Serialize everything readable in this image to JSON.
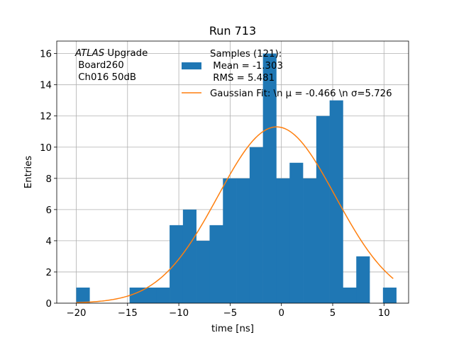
{
  "chart_data": {
    "type": "bar",
    "title": "Run 713",
    "xlabel": "time [ns]",
    "ylabel": "Entries",
    "xlim": [
      -21.9,
      12.4
    ],
    "ylim": [
      0,
      16.8
    ],
    "grid": true,
    "x_ticks": [
      -20,
      -15,
      -10,
      -5,
      0,
      5,
      10
    ],
    "y_ticks": [
      0,
      2,
      4,
      6,
      8,
      10,
      12,
      14,
      16
    ],
    "bin_edges": [
      -20.0,
      -18.7,
      -17.4,
      -16.1,
      -14.8,
      -13.5,
      -12.2,
      -10.9,
      -9.6,
      -8.3,
      -7.0,
      -5.7,
      -4.4,
      -3.1,
      -1.8,
      -0.5,
      0.8,
      2.1,
      3.4,
      4.7,
      6.0,
      7.3,
      8.6,
      9.9,
      11.2
    ],
    "series": [
      {
        "name": "Samples (121):\n Mean = -1.303\n RMS = 5.481",
        "kind": "histogram",
        "color": "#1f77b4",
        "counts": [
          1,
          0,
          0,
          0,
          1,
          1,
          1,
          5,
          6,
          4,
          5,
          8,
          8,
          10,
          16,
          8,
          9,
          8,
          12,
          13,
          1,
          3,
          0,
          1
        ]
      },
      {
        "name": "Gaussian Fit: \\n $\\mu$ = -0.466 \\n $\\sigma$=5.726",
        "kind": "line",
        "color": "#ff7f0e",
        "mu": -0.466,
        "sigma": 5.726,
        "amplitude": 11.3,
        "x_range": [
          -20.0,
          10.9
        ]
      }
    ],
    "legend": {
      "placement": "top-center",
      "entries": [
        {
          "lines": [
            "Samples (121):",
            " Mean = -1.303",
            " RMS = 5.481"
          ],
          "color": "#1f77b4",
          "marker": "patch"
        },
        {
          "lines": [
            "Gaussian Fit: \\n μ = -0.466 \\n σ=5.726"
          ],
          "color": "#ff7f0e",
          "marker": "line"
        }
      ]
    },
    "annotation": {
      "line1_italic": "ATLAS",
      "line1_rest": " Upgrade",
      "line2": " Board260",
      "line3": " Ch016 50dB"
    }
  }
}
